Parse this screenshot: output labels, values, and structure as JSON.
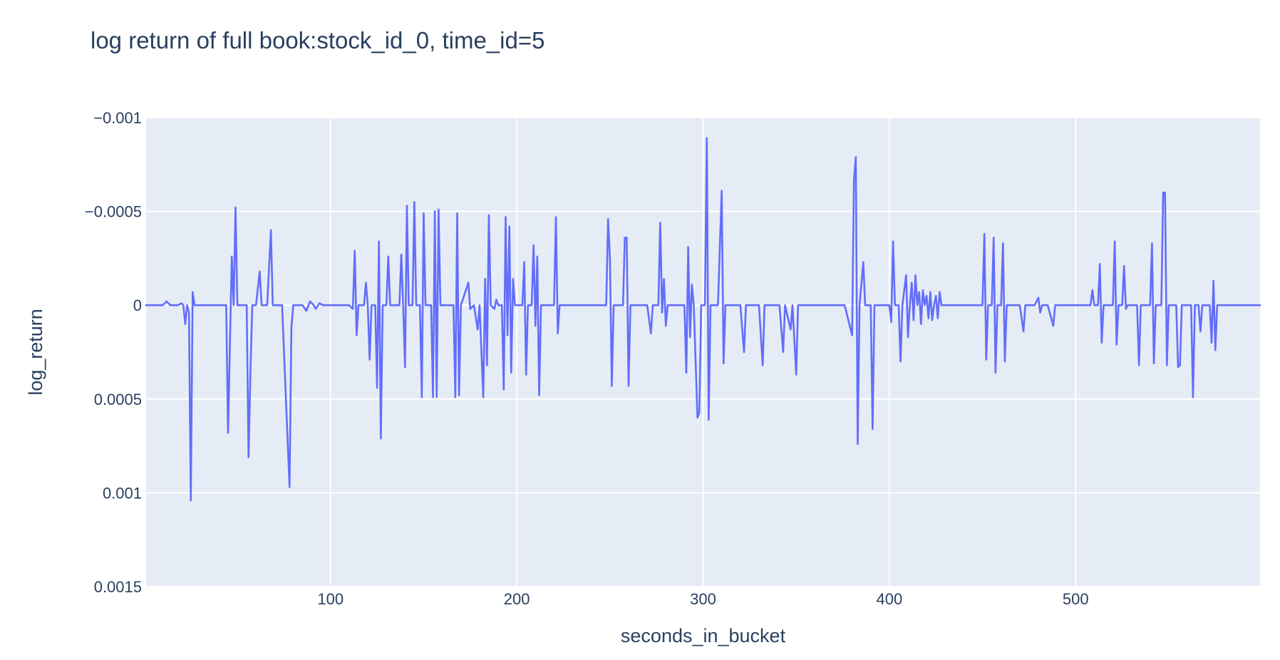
{
  "chart_data": {
    "type": "line",
    "title": "log return of full book:stock_id_0, time_id=5",
    "xlabel": "seconds_in_bucket",
    "ylabel": "log_return",
    "xlim": [
      1,
      599
    ],
    "ylim": [
      -0.001,
      0.0015
    ],
    "y_reversed": true,
    "xticks": [
      100,
      200,
      300,
      400,
      500
    ],
    "xtick_labels": [
      "100",
      "200",
      "300",
      "400",
      "500"
    ],
    "yticks": [
      -0.001,
      -0.0005,
      0,
      0.0005,
      0.001,
      0.0015
    ],
    "ytick_labels": [
      "−0.001",
      "−0.0005",
      "0",
      "0.0005",
      "0.001",
      "0.0015"
    ],
    "grid": true,
    "colors": {
      "plot_background": "#e5ecf6",
      "grid": "#ffffff",
      "series": "#636efa",
      "text": "#2a3f5f"
    },
    "series": [
      {
        "points": [
          [
            1,
            0
          ],
          [
            10,
            0
          ],
          [
            12,
            -2e-05
          ],
          [
            14,
            0
          ],
          [
            18,
            0
          ],
          [
            20,
            -1e-05
          ],
          [
            21,
            0
          ],
          [
            22,
            0.0001
          ],
          [
            23,
            0
          ],
          [
            24,
            4e-05
          ],
          [
            25,
            0.00104
          ],
          [
            26,
            -7e-05
          ],
          [
            27,
            0
          ],
          [
            40,
            0
          ],
          [
            44,
            0
          ],
          [
            45,
            0.00068
          ],
          [
            47,
            -0.00026
          ],
          [
            48,
            0
          ],
          [
            49,
            -0.00052
          ],
          [
            50,
            0
          ],
          [
            55,
            0
          ],
          [
            56,
            0.00081
          ],
          [
            57,
            0.00036
          ],
          [
            58,
            0
          ],
          [
            60,
            0
          ],
          [
            62,
            -0.00018
          ],
          [
            63,
            0
          ],
          [
            66,
            0
          ],
          [
            68,
            -0.0004
          ],
          [
            69,
            0
          ],
          [
            74,
            0
          ],
          [
            78,
            0.00097
          ],
          [
            79,
            0.00012
          ],
          [
            80,
            0
          ],
          [
            85,
            0
          ],
          [
            87,
            3e-05
          ],
          [
            89,
            -2e-05
          ],
          [
            91,
            0
          ],
          [
            92,
            2e-05
          ],
          [
            94,
            -1e-05
          ],
          [
            96,
            0
          ],
          [
            110,
            0
          ],
          [
            112,
            2e-05
          ],
          [
            113,
            -0.00029
          ],
          [
            114,
            0.00016
          ],
          [
            115,
            0
          ],
          [
            118,
            0
          ],
          [
            119,
            -0.00012
          ],
          [
            120,
            0
          ],
          [
            121,
            0.00029
          ],
          [
            122,
            0
          ],
          [
            124,
            0
          ],
          [
            125,
            0.00044
          ],
          [
            126,
            -0.00034
          ],
          [
            127,
            0.00071
          ],
          [
            128,
            0
          ],
          [
            130,
            0
          ],
          [
            131,
            -0.00026
          ],
          [
            132,
            0
          ],
          [
            137,
            0
          ],
          [
            138,
            -0.00027
          ],
          [
            139,
            0
          ],
          [
            140,
            0.00033
          ],
          [
            141,
            -0.00053
          ],
          [
            142,
            0
          ],
          [
            144,
            0
          ],
          [
            145,
            -0.00055
          ],
          [
            146,
            0
          ],
          [
            148,
            0
          ],
          [
            149,
            0.00049
          ],
          [
            150,
            -0.00049
          ],
          [
            151,
            0
          ],
          [
            154,
            0
          ],
          [
            155,
            0.00049
          ],
          [
            156,
            -0.0005
          ],
          [
            157,
            0.00049
          ],
          [
            158,
            -0.00051
          ],
          [
            159,
            0
          ],
          [
            166,
            0
          ],
          [
            167,
            0.00049
          ],
          [
            168,
            -0.00049
          ],
          [
            169,
            0.00048
          ],
          [
            170,
            0
          ],
          [
            174,
            -0.00012
          ],
          [
            175,
            2e-05
          ],
          [
            177,
            0
          ],
          [
            179,
            0.00013
          ],
          [
            180,
            0
          ],
          [
            182,
            0.00049
          ],
          [
            183,
            -0.00014
          ],
          [
            184,
            0.00032
          ],
          [
            185,
            -0.00048
          ],
          [
            186,
            0
          ],
          [
            188,
            2e-05
          ],
          [
            189,
            -3e-05
          ],
          [
            190,
            0
          ],
          [
            192,
            0
          ],
          [
            193,
            0.00045
          ],
          [
            194,
            -0.00047
          ],
          [
            195,
            0.00016
          ],
          [
            196,
            -0.00042
          ],
          [
            197,
            0.00036
          ],
          [
            198,
            -0.00014
          ],
          [
            199,
            0
          ],
          [
            203,
            0
          ],
          [
            204,
            -0.00023
          ],
          [
            205,
            0.00037
          ],
          [
            206,
            0
          ],
          [
            208,
            0
          ],
          [
            209,
            -0.00032
          ],
          [
            210,
            0.00011
          ],
          [
            211,
            -0.00026
          ],
          [
            212,
            0.00048
          ],
          [
            213,
            0
          ],
          [
            220,
            0
          ],
          [
            221,
            -0.00047
          ],
          [
            222,
            0.00015
          ],
          [
            223,
            0
          ],
          [
            248,
            0
          ],
          [
            249,
            -0.00046
          ],
          [
            250,
            -0.00025
          ],
          [
            251,
            0.00043
          ],
          [
            252,
            0
          ],
          [
            257,
            0
          ],
          [
            258,
            -0.00036
          ],
          [
            259,
            -0.00036
          ],
          [
            260,
            0.00043
          ],
          [
            261,
            0
          ],
          [
            270,
            0
          ],
          [
            272,
            0.00015
          ],
          [
            273,
            0
          ],
          [
            276,
            0
          ],
          [
            277,
            -0.00044
          ],
          [
            278,
            4e-05
          ],
          [
            279,
            -0.00014
          ],
          [
            280,
            0.00011
          ],
          [
            281,
            0
          ],
          [
            290,
            0
          ],
          [
            291,
            0.00036
          ],
          [
            292,
            -0.00031
          ],
          [
            293,
            0.00017
          ],
          [
            294,
            -0.00011
          ],
          [
            295,
            0
          ],
          [
            297,
            0.0006
          ],
          [
            298,
            0.00057
          ],
          [
            299,
            0
          ],
          [
            301,
            0
          ],
          [
            302,
            -0.00089
          ],
          [
            303,
            0.00061
          ],
          [
            304,
            0
          ],
          [
            308,
            0
          ],
          [
            310,
            -0.00061
          ],
          [
            311,
            0.00031
          ],
          [
            312,
            0
          ],
          [
            320,
            0
          ],
          [
            322,
            0.00025
          ],
          [
            323,
            0
          ],
          [
            330,
            0
          ],
          [
            332,
            0.00032
          ],
          [
            333,
            0
          ],
          [
            341,
            0
          ],
          [
            343,
            0.00025
          ],
          [
            344,
            0
          ],
          [
            347,
            0.00013
          ],
          [
            348,
            0
          ],
          [
            350,
            0.00037
          ],
          [
            351,
            0
          ],
          [
            376,
            0
          ],
          [
            380,
            0.00016
          ],
          [
            381,
            -0.00067
          ],
          [
            382,
            -0.00079
          ],
          [
            383,
            0.00074
          ],
          [
            384,
            0
          ],
          [
            386,
            -0.00023
          ],
          [
            387,
            0
          ],
          [
            390,
            0
          ],
          [
            391,
            0.00066
          ],
          [
            392,
            0
          ],
          [
            400,
            0
          ],
          [
            401,
            9e-05
          ],
          [
            402,
            -0.00034
          ],
          [
            403,
            0
          ],
          [
            405,
            0
          ],
          [
            406,
            0.0003
          ],
          [
            407,
            0
          ],
          [
            409,
            -0.00016
          ],
          [
            410,
            0.00017
          ],
          [
            411,
            0
          ],
          [
            412,
            -0.00012
          ],
          [
            413,
            8e-05
          ],
          [
            414,
            -0.00016
          ],
          [
            415,
            0
          ],
          [
            416,
            -7e-05
          ],
          [
            417,
            0.0001
          ],
          [
            418,
            -8e-05
          ],
          [
            419,
            0
          ],
          [
            420,
            -5e-05
          ],
          [
            421,
            7e-05
          ],
          [
            422,
            -7e-05
          ],
          [
            423,
            8e-05
          ],
          [
            424,
            0
          ],
          [
            425,
            -5e-05
          ],
          [
            426,
            7e-05
          ],
          [
            427,
            -7e-05
          ],
          [
            428,
            0
          ],
          [
            450,
            0
          ],
          [
            451,
            -0.00038
          ],
          [
            452,
            0.00029
          ],
          [
            453,
            0
          ],
          [
            455,
            0
          ],
          [
            456,
            -0.00036
          ],
          [
            457,
            0.00036
          ],
          [
            458,
            0
          ],
          [
            460,
            0
          ],
          [
            461,
            -0.00033
          ],
          [
            462,
            0.0003
          ],
          [
            463,
            0
          ],
          [
            470,
            0
          ],
          [
            472,
            0.00014
          ],
          [
            473,
            0
          ],
          [
            478,
            0
          ],
          [
            480,
            -4e-05
          ],
          [
            481,
            4e-05
          ],
          [
            482,
            0
          ],
          [
            485,
            0
          ],
          [
            488,
            0.00011
          ],
          [
            489,
            0
          ],
          [
            508,
            0
          ],
          [
            509,
            -8e-05
          ],
          [
            510,
            0
          ],
          [
            512,
            0
          ],
          [
            513,
            -0.00022
          ],
          [
            514,
            0.0002
          ],
          [
            515,
            0
          ],
          [
            520,
            0
          ],
          [
            521,
            -0.00034
          ],
          [
            522,
            0.00021
          ],
          [
            523,
            0
          ],
          [
            525,
            0
          ],
          [
            526,
            -0.00021
          ],
          [
            527,
            2e-05
          ],
          [
            528,
            0
          ],
          [
            533,
            0
          ],
          [
            534,
            0.00032
          ],
          [
            535,
            0
          ],
          [
            540,
            0
          ],
          [
            541,
            -0.00033
          ],
          [
            542,
            0.00031
          ],
          [
            543,
            0
          ],
          [
            546,
            0
          ],
          [
            547,
            -0.0006
          ],
          [
            548,
            -0.0006
          ],
          [
            549,
            0.00032
          ],
          [
            550,
            0
          ],
          [
            554,
            0
          ],
          [
            555,
            0.00033
          ],
          [
            556,
            0.00032
          ],
          [
            557,
            0
          ],
          [
            562,
            0
          ],
          [
            563,
            0.00049
          ],
          [
            564,
            0
          ],
          [
            566,
            0
          ],
          [
            567,
            0.00014
          ],
          [
            568,
            0
          ],
          [
            572,
            0
          ],
          [
            573,
            0.0002
          ],
          [
            574,
            -0.00013
          ],
          [
            575,
            0.00024
          ],
          [
            576,
            0
          ],
          [
            599,
            0
          ]
        ]
      }
    ]
  }
}
